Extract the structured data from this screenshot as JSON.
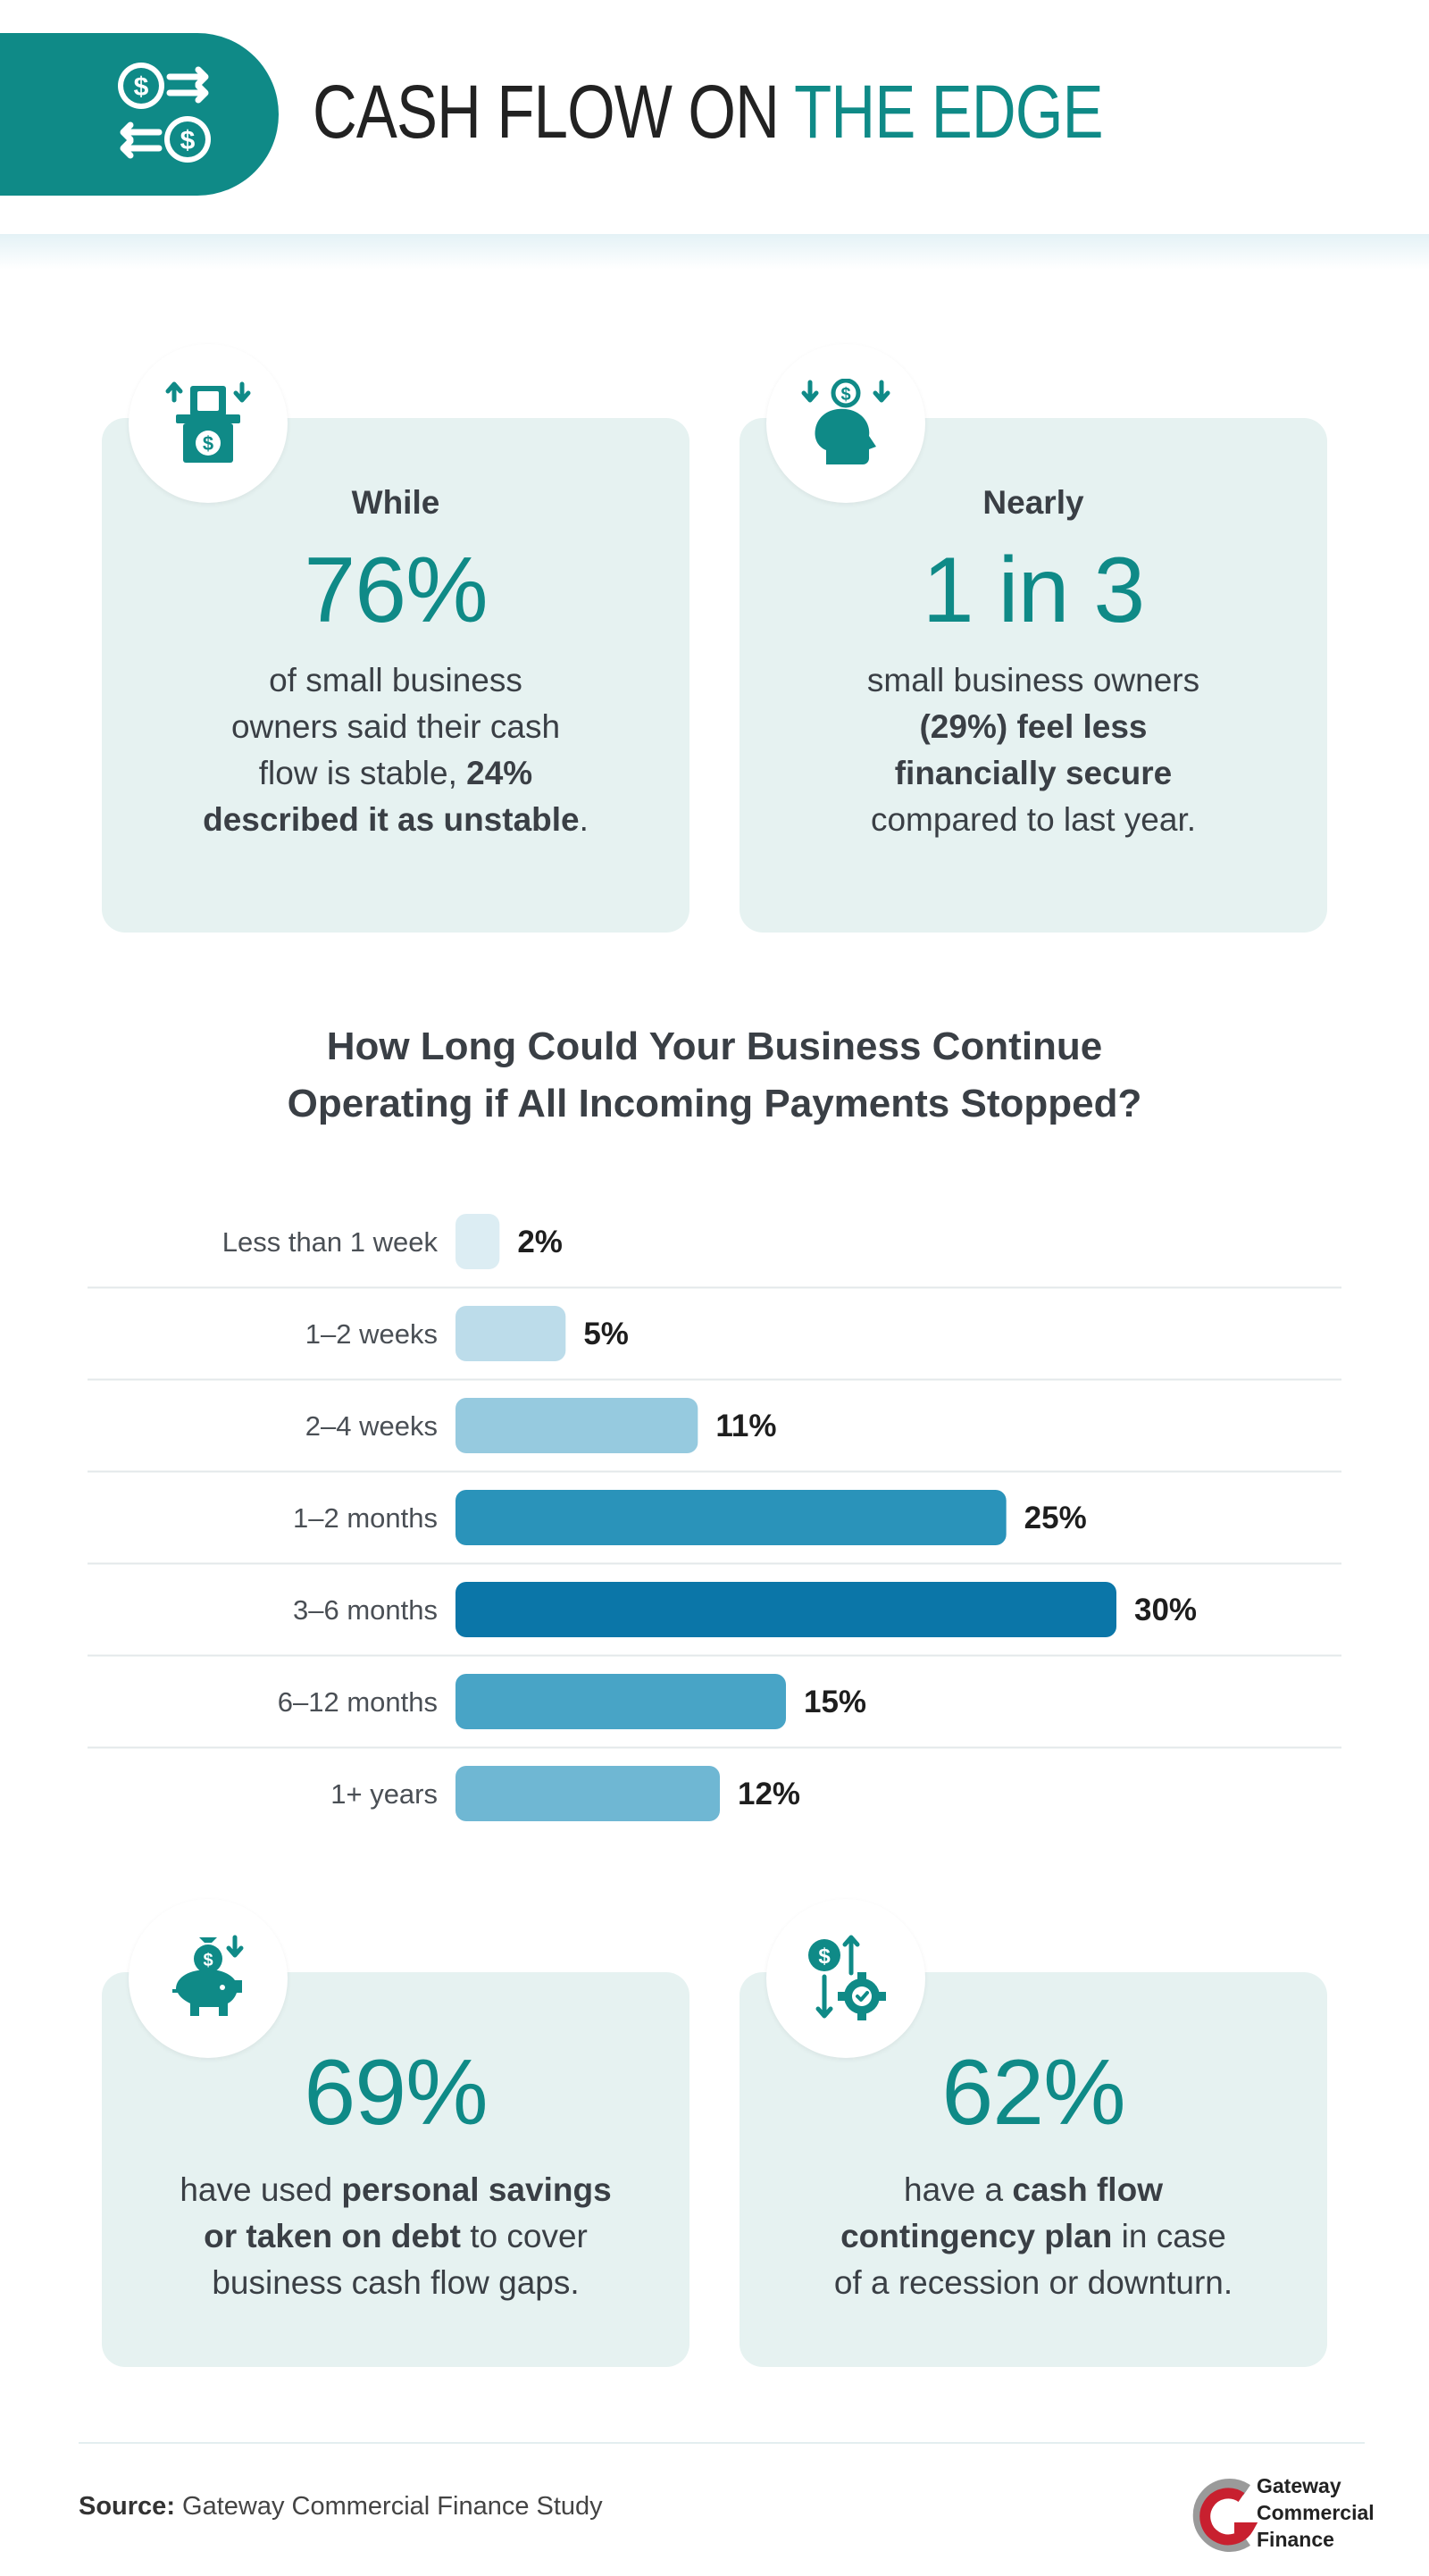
{
  "header": {
    "title_main": "CASH FLOW ON ",
    "title_accent": "THE EDGE",
    "icon": "cash-flow-exchange-icon"
  },
  "stats_top": [
    {
      "icon": "cash-register-icon",
      "lead": "While",
      "big": "76%",
      "line1": "of small business",
      "line2": "owners said their cash",
      "line3a": "flow is stable, ",
      "line3b": "24%",
      "line4a": "described it as unstable",
      "line4b": "."
    },
    {
      "icon": "mind-money-icon",
      "lead": "Nearly",
      "big": "1 in 3",
      "line1": "small business owners",
      "line2": "(29%) feel less",
      "line3": "financially secure",
      "line4": "compared to last year."
    }
  ],
  "chart_data": {
    "type": "bar",
    "orientation": "horizontal",
    "title_line1": "How Long Could Your Business Continue",
    "title_line2": "Operating if All Incoming Payments Stopped?",
    "categories": [
      "Less than 1 week",
      "1–2 weeks",
      "2–4 weeks",
      "1–2 months",
      "3–6 months",
      "6–12 months",
      "1+ years"
    ],
    "values": [
      2,
      5,
      11,
      25,
      30,
      15,
      12
    ],
    "value_labels": [
      "2%",
      "5%",
      "11%",
      "25%",
      "30%",
      "15%",
      "12%"
    ],
    "colors": [
      "#dcedf3",
      "#bcdcea",
      "#96cadf",
      "#2a93ba",
      "#0b76a8",
      "#48a4c6",
      "#6fb7d3"
    ],
    "xlim": [
      0,
      30
    ],
    "grid": false
  },
  "stats_bottom": [
    {
      "icon": "piggy-bank-icon",
      "big": "69%",
      "line1a": "have used ",
      "line1b": "personal savings",
      "line2a": "or taken on debt",
      "line2b": " to cover",
      "line3": "business cash flow gaps."
    },
    {
      "icon": "cash-gear-icon",
      "big": "62%",
      "line1a": "have a ",
      "line1b": "cash flow",
      "line2a": "contingency plan",
      "line2b": " in case",
      "line3": "of a recession or downturn."
    }
  ],
  "footer": {
    "source_label": "Source:",
    "source_text": " Gateway Commercial Finance Study",
    "logo_line1": "Gateway",
    "logo_line2": "Commercial",
    "logo_line3": "Finance"
  },
  "colors": {
    "accent": "#0f8a87",
    "card_bg": "#e6f2f1",
    "text": "#3a3f45"
  }
}
